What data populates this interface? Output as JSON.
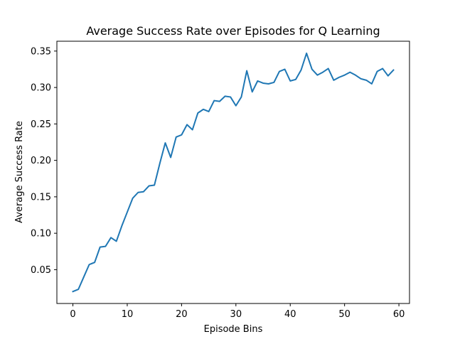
{
  "chart_data": {
    "type": "line",
    "title": "Average Success Rate over Episodes for Q Learning",
    "xlabel": "Episode Bins",
    "ylabel": "Average Success Rate",
    "xlim": [
      -2.95,
      61.95
    ],
    "ylim": [
      0.0036,
      0.3635
    ],
    "x_ticks": [
      0,
      10,
      20,
      30,
      40,
      50,
      60
    ],
    "x_tick_labels": [
      "0",
      "10",
      "20",
      "30",
      "40",
      "50",
      "60"
    ],
    "y_ticks": [
      0.05,
      0.1,
      0.15,
      0.2,
      0.25,
      0.3,
      0.35
    ],
    "y_tick_labels": [
      "0.05",
      "0.10",
      "0.15",
      "0.20",
      "0.25",
      "0.30",
      "0.35"
    ],
    "grid": false,
    "series": [
      {
        "color": "#1f77b4",
        "x": [
          0,
          1,
          2,
          3,
          4,
          5,
          6,
          7,
          8,
          9,
          10,
          11,
          12,
          13,
          14,
          15,
          16,
          17,
          18,
          19,
          20,
          21,
          22,
          23,
          24,
          25,
          26,
          27,
          28,
          29,
          30,
          31,
          32,
          33,
          34,
          35,
          36,
          37,
          38,
          39,
          40,
          41,
          42,
          43,
          44,
          45,
          46,
          47,
          48,
          49,
          50,
          51,
          52,
          53,
          54,
          55,
          56,
          57,
          58,
          59
        ],
        "values": [
          0.02,
          0.023,
          0.04,
          0.057,
          0.06,
          0.081,
          0.082,
          0.094,
          0.089,
          0.11,
          0.129,
          0.148,
          0.156,
          0.157,
          0.165,
          0.166,
          0.196,
          0.224,
          0.204,
          0.232,
          0.235,
          0.249,
          0.242,
          0.265,
          0.27,
          0.267,
          0.282,
          0.281,
          0.288,
          0.287,
          0.275,
          0.287,
          0.323,
          0.294,
          0.309,
          0.306,
          0.305,
          0.307,
          0.322,
          0.325,
          0.309,
          0.311,
          0.324,
          0.347,
          0.325,
          0.317,
          0.321,
          0.326,
          0.31,
          0.314,
          0.317,
          0.321,
          0.317,
          0.312,
          0.31,
          0.305,
          0.322,
          0.326,
          0.316,
          0.324
        ]
      }
    ]
  }
}
